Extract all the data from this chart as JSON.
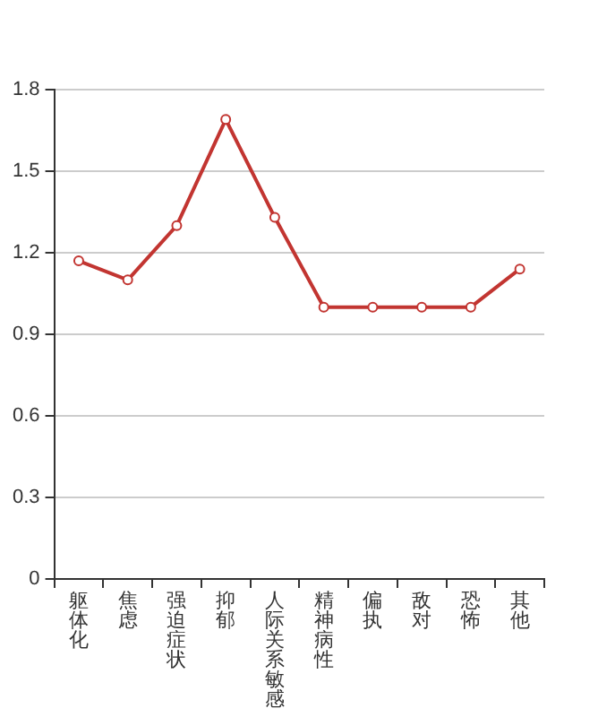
{
  "chart_data": {
    "type": "line",
    "categories": [
      "躯体化",
      "焦虑",
      "强迫症状",
      "抑郁",
      "人际关系敏感",
      "精神病性",
      "偏执",
      "敌对",
      "恐怖",
      "其他"
    ],
    "series": [
      {
        "color": "#c23531",
        "values": [
          1.17,
          1.1,
          1.3,
          1.69,
          1.33,
          1.0,
          1.0,
          1.0,
          1.0,
          1.14
        ]
      }
    ],
    "ylim": [
      0,
      1.8
    ],
    "yticks": [
      0,
      0.3,
      0.6,
      0.9,
      1.2,
      1.5,
      1.8
    ],
    "grid": "y",
    "legend": false,
    "marker": "circle",
    "line_style": "solid"
  }
}
